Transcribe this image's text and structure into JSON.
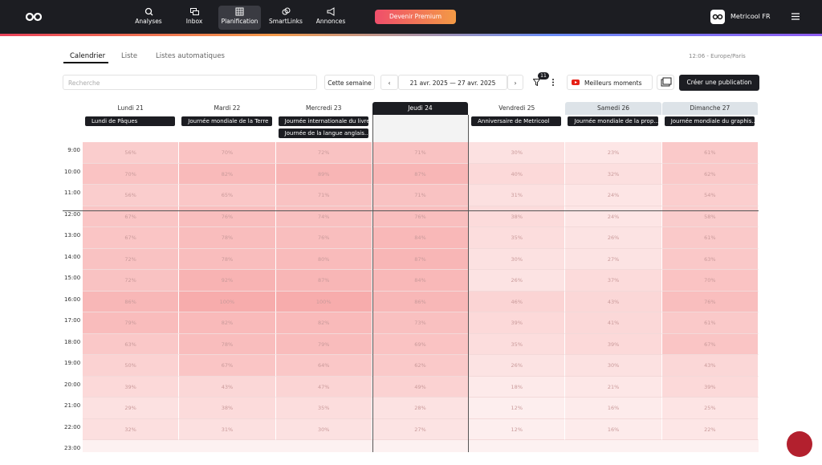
{
  "nav": {
    "items": [
      "Analyses",
      "Inbox",
      "Planification",
      "SmartLinks",
      "Annonces"
    ],
    "premium": "Devenir Premium",
    "account": "Metricool FR"
  },
  "tabs": [
    "Calendrier",
    "Liste",
    "Listes automatiques"
  ],
  "timezone": "12:06 - Europe/Paris",
  "toolbar": {
    "search_placeholder": "Recherche",
    "this_week": "Cette semaine",
    "date_from": "21 avr. 2025",
    "date_separator": "—",
    "date_to": "27 avr. 2025",
    "filter_count": "11",
    "best_moments": "Meilleurs moments",
    "create": "Créer une publication"
  },
  "calendar": {
    "days": [
      {
        "label": "Lundi 21",
        "events": [
          "Lundi de Pâques"
        ]
      },
      {
        "label": "Mardi 22",
        "events": [
          "Journée mondiale de la Terre"
        ]
      },
      {
        "label": "Mercredi 23",
        "events": [
          "Journée internationale du livre",
          "Journée de la langue anglais..."
        ]
      },
      {
        "label": "Jeudi 24",
        "events": []
      },
      {
        "label": "Vendredi 25",
        "events": [
          "Anniversaire de Metricool"
        ]
      },
      {
        "label": "Samedi 26",
        "events": [
          "Journée mondiale de la prop..."
        ]
      },
      {
        "label": "Dimanche 27",
        "events": [
          "Journée mondiale du graphis..."
        ]
      }
    ],
    "hours": [
      "9:00",
      "10:00",
      "11:00",
      "12:00",
      "13:00",
      "14:00",
      "15:00",
      "16:00",
      "17:00",
      "18:00",
      "19:00",
      "20:00",
      "21:00",
      "22:00",
      "23:00"
    ],
    "cells": [
      [
        "56%",
        "70%",
        "72%",
        "71%",
        "30%",
        "23%",
        "61%"
      ],
      [
        "70%",
        "82%",
        "89%",
        "87%",
        "40%",
        "32%",
        "62%"
      ],
      [
        "56%",
        "65%",
        "71%",
        "71%",
        "31%",
        "24%",
        "54%"
      ],
      [
        "67%",
        "76%",
        "74%",
        "76%",
        "38%",
        "24%",
        "58%"
      ],
      [
        "67%",
        "78%",
        "76%",
        "84%",
        "35%",
        "26%",
        "61%"
      ],
      [
        "72%",
        "78%",
        "80%",
        "87%",
        "30%",
        "27%",
        "63%"
      ],
      [
        "72%",
        "92%",
        "87%",
        "84%",
        "26%",
        "37%",
        "70%"
      ],
      [
        "86%",
        "100%",
        "100%",
        "86%",
        "46%",
        "43%",
        "76%"
      ],
      [
        "79%",
        "82%",
        "82%",
        "73%",
        "39%",
        "41%",
        "61%"
      ],
      [
        "63%",
        "78%",
        "79%",
        "69%",
        "35%",
        "39%",
        "67%"
      ],
      [
        "50%",
        "67%",
        "64%",
        "62%",
        "26%",
        "30%",
        "43%"
      ],
      [
        "39%",
        "43%",
        "47%",
        "49%",
        "18%",
        "21%",
        "39%"
      ],
      [
        "29%",
        "38%",
        "35%",
        "28%",
        "12%",
        "16%",
        "25%"
      ],
      [
        "32%",
        "31%",
        "30%",
        "27%",
        "12%",
        "16%",
        "22%"
      ]
    ]
  }
}
